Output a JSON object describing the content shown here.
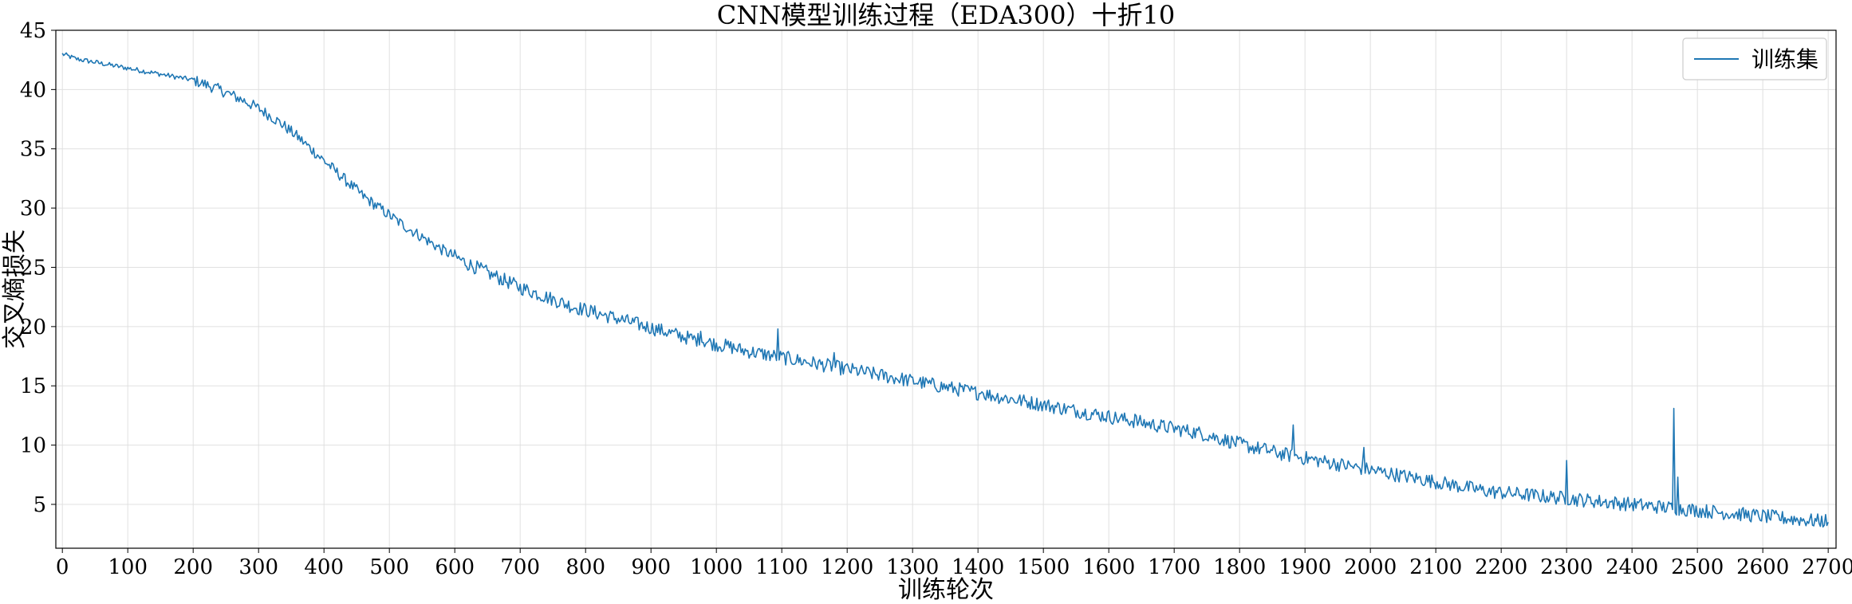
{
  "chart_data": {
    "type": "line",
    "title": "CNN模型训练过程（EDA300）十折10",
    "xlabel": "训练轮次",
    "ylabel": "交叉熵损失",
    "xlim": [
      -10,
      2712
    ],
    "ylim": [
      1.3,
      45
    ],
    "xticks": [
      0,
      100,
      200,
      300,
      400,
      500,
      600,
      700,
      800,
      900,
      1000,
      1100,
      1200,
      1300,
      1400,
      1500,
      1600,
      1700,
      1800,
      1900,
      2000,
      2100,
      2200,
      2300,
      2400,
      2500,
      2600,
      2700
    ],
    "yticks": [
      5,
      10,
      15,
      20,
      25,
      30,
      35,
      40,
      45
    ],
    "grid": true,
    "legend_position": "top-right",
    "colors": {
      "series": "#1f77b4",
      "grid": "#e0e0e0",
      "axis": "#000000"
    },
    "series": [
      {
        "name": "训练集",
        "x_start": 0,
        "x_step": 20,
        "values": [
          43.0,
          42.6,
          42.4,
          42.2,
          42.0,
          41.8,
          41.6,
          41.4,
          41.2,
          41.0,
          40.8,
          40.4,
          40.0,
          39.5,
          39.0,
          38.4,
          37.7,
          36.9,
          36.0,
          35.0,
          34.0,
          33.0,
          32.0,
          31.0,
          30.2,
          29.4,
          28.6,
          27.9,
          27.2,
          26.5,
          25.9,
          25.3,
          24.8,
          24.3,
          23.8,
          23.3,
          22.9,
          22.5,
          22.1,
          21.7,
          21.4,
          21.1,
          20.8,
          20.5,
          20.2,
          19.9,
          19.6,
          19.3,
          19.0,
          18.8,
          18.5,
          18.3,
          18.0,
          17.8,
          17.6,
          17.4,
          17.2,
          17.0,
          16.8,
          16.6,
          16.4,
          16.2,
          16.0,
          15.8,
          15.6,
          15.4,
          15.2,
          15.0,
          14.8,
          14.6,
          14.4,
          14.2,
          14.0,
          13.8,
          13.6,
          13.4,
          13.2,
          13.0,
          12.8,
          12.6,
          12.4,
          12.2,
          12.0,
          11.8,
          11.6,
          11.4,
          11.2,
          11.0,
          10.7,
          10.4,
          10.1,
          9.8,
          9.6,
          9.3,
          9.1,
          8.9,
          8.7,
          8.5,
          8.3,
          8.1,
          7.9,
          7.7,
          7.5,
          7.3,
          7.1,
          6.9,
          6.7,
          6.5,
          6.3,
          6.1,
          6.0,
          5.9,
          5.8,
          5.7,
          5.6,
          5.5,
          5.4,
          5.3,
          5.2,
          5.1,
          5.0,
          4.9,
          4.8,
          4.7,
          4.6,
          4.5,
          4.4,
          4.3,
          4.2,
          4.1,
          4.0,
          3.9,
          3.8,
          3.7,
          3.6,
          3.6
        ],
        "noise_amplitude": 0.6,
        "spikes": [
          {
            "x": 655,
            "y": 24.6
          },
          {
            "x": 780,
            "y": 21.4
          },
          {
            "x": 975,
            "y": 19.6
          },
          {
            "x": 1093,
            "y": 19.8
          },
          {
            "x": 1180,
            "y": 17.8
          },
          {
            "x": 1310,
            "y": 15.4
          },
          {
            "x": 1405,
            "y": 14.5
          },
          {
            "x": 1640,
            "y": 12.6
          },
          {
            "x": 1882,
            "y": 11.7
          },
          {
            "x": 1990,
            "y": 9.8
          },
          {
            "x": 2300,
            "y": 8.7
          },
          {
            "x": 2464,
            "y": 13.1
          },
          {
            "x": 2470,
            "y": 7.3
          }
        ]
      }
    ]
  }
}
